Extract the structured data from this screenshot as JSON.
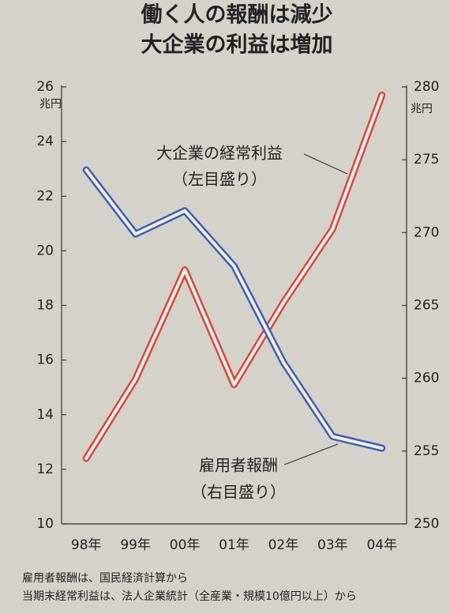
{
  "chart_data": {
    "type": "line",
    "title": [
      "働く人の報酬は減少",
      "大企業の利益は増加"
    ],
    "categories": [
      "98年",
      "99年",
      "00年",
      "01年",
      "02年",
      "03年",
      "04年"
    ],
    "series": [
      {
        "name": "大企業の経常利益",
        "color": "#d9463a",
        "values": [
          12.4,
          15.3,
          19.3,
          15.1,
          18.1,
          20.8,
          25.7
        ]
      },
      {
        "name": "雇用者報酬",
        "color": "#3f5fb5",
        "axis": "y2",
        "values": [
          274.3,
          269.9,
          271.5,
          267.7,
          261.1,
          256.0,
          255.2
        ]
      }
    ],
    "annotations": [
      "（左目盛り）",
      "（右目盛り）"
    ],
    "ylabel": "兆円",
    "y2label": "兆円",
    "ylim": [
      10,
      26
    ],
    "yticks": [
      10,
      12,
      14,
      16,
      18,
      20,
      22,
      24,
      26
    ],
    "y2lim": [
      250,
      280
    ],
    "y2ticks": [
      250,
      255,
      260,
      265,
      270,
      275,
      280
    ],
    "notes": [
      "雇用者報酬は、国民経済計算から",
      "当期末経常利益は、法人企業統計（全産業・規模10億円以上）から"
    ]
  }
}
